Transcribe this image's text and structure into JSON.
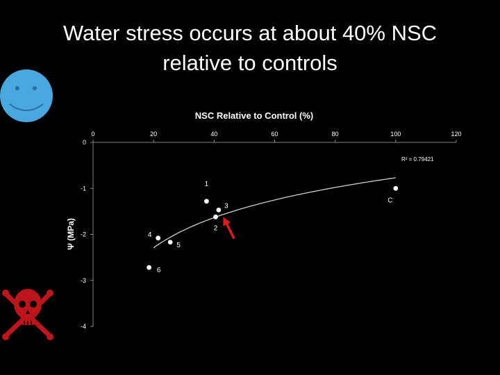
{
  "slide": {
    "title_line1": "Water stress occurs at about 40% NSC",
    "title_line2": "relative to controls"
  },
  "icons": {
    "happy": "smiley-face-icon",
    "danger": "skull-crossbones-icon",
    "pointer": "red-arrow-icon"
  },
  "colors": {
    "background": "#000000",
    "smiley": "#4aa8e0",
    "skull": "#c0141c",
    "arrow": "#e01b1b",
    "points": "#ffffff"
  },
  "chart_data": {
    "type": "scatter",
    "title": "NSC Relative to Control  (%)",
    "xlabel": "NSC Relative to Control  (%)",
    "ylabel": "Ψ  (MPa)",
    "x_axis_position": "top",
    "xlim": [
      0,
      120
    ],
    "ylim": [
      -4,
      0
    ],
    "xticks": [
      0,
      20,
      40,
      60,
      80,
      100,
      120
    ],
    "yticks": [
      0,
      -1,
      -2,
      -3,
      -4
    ],
    "grid": false,
    "points": [
      {
        "label": "1",
        "x": 37.5,
        "y": -1.28
      },
      {
        "label": "3",
        "x": 41.5,
        "y": -1.47
      },
      {
        "label": "2",
        "x": 40.5,
        "y": -1.62
      },
      {
        "label": "4",
        "x": 21.5,
        "y": -2.08
      },
      {
        "label": "5",
        "x": 25.5,
        "y": -2.17
      },
      {
        "label": "6",
        "x": 18.5,
        "y": -2.72
      },
      {
        "label": "C",
        "x": 100,
        "y": -1.0
      }
    ],
    "trendline": {
      "type": "logarithmic",
      "x_range": [
        20,
        100
      ],
      "r_squared_label": "R² = 0.79421"
    },
    "annotation": {
      "type": "arrow",
      "color": "#e01b1b",
      "target_x": 43,
      "target_y": -1.62
    }
  }
}
